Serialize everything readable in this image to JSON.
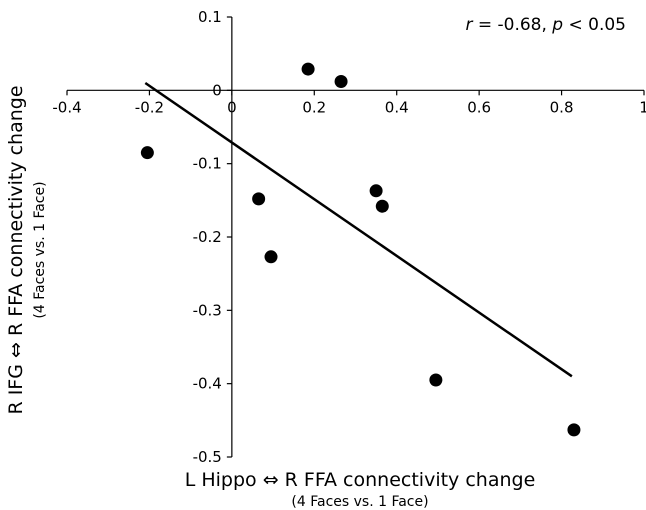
{
  "chart_data": {
    "type": "scatter",
    "annotation": {
      "r_symbol": "r",
      "r_value": " = -0.68, ",
      "p_symbol": "p",
      "p_value": " < 0.05"
    },
    "xlabel": "L Hippo ⇔ R FFA connectivity change",
    "xlabel_sub": "(4 Faces vs. 1 Face)",
    "ylabel": "R IFG ⇔ R FFA connectivity change",
    "ylabel_sub": "(4 Faces vs. 1 Face)",
    "xlim": [
      -0.4,
      1
    ],
    "ylim": [
      -0.5,
      0.1
    ],
    "x_ticks": [
      "-0.4",
      "-0.2",
      "0",
      "0.2",
      "0.4",
      "0.6",
      "0.8",
      "1"
    ],
    "y_ticks": [
      "0.1",
      "0",
      "-0.1",
      "-0.2",
      "-0.3",
      "-0.4",
      "-0.5"
    ],
    "points": [
      {
        "x": -0.205,
        "y": -0.085
      },
      {
        "x": 0.065,
        "y": -0.148
      },
      {
        "x": 0.095,
        "y": -0.227
      },
      {
        "x": 0.185,
        "y": 0.029
      },
      {
        "x": 0.265,
        "y": 0.012
      },
      {
        "x": 0.35,
        "y": -0.137
      },
      {
        "x": 0.365,
        "y": -0.158
      },
      {
        "x": 0.495,
        "y": -0.395
      },
      {
        "x": 0.83,
        "y": -0.463
      }
    ],
    "trendline": {
      "x": [
        -0.21,
        0.825
      ],
      "y": [
        0.01,
        -0.39
      ]
    },
    "grid": false,
    "legend": "none"
  }
}
